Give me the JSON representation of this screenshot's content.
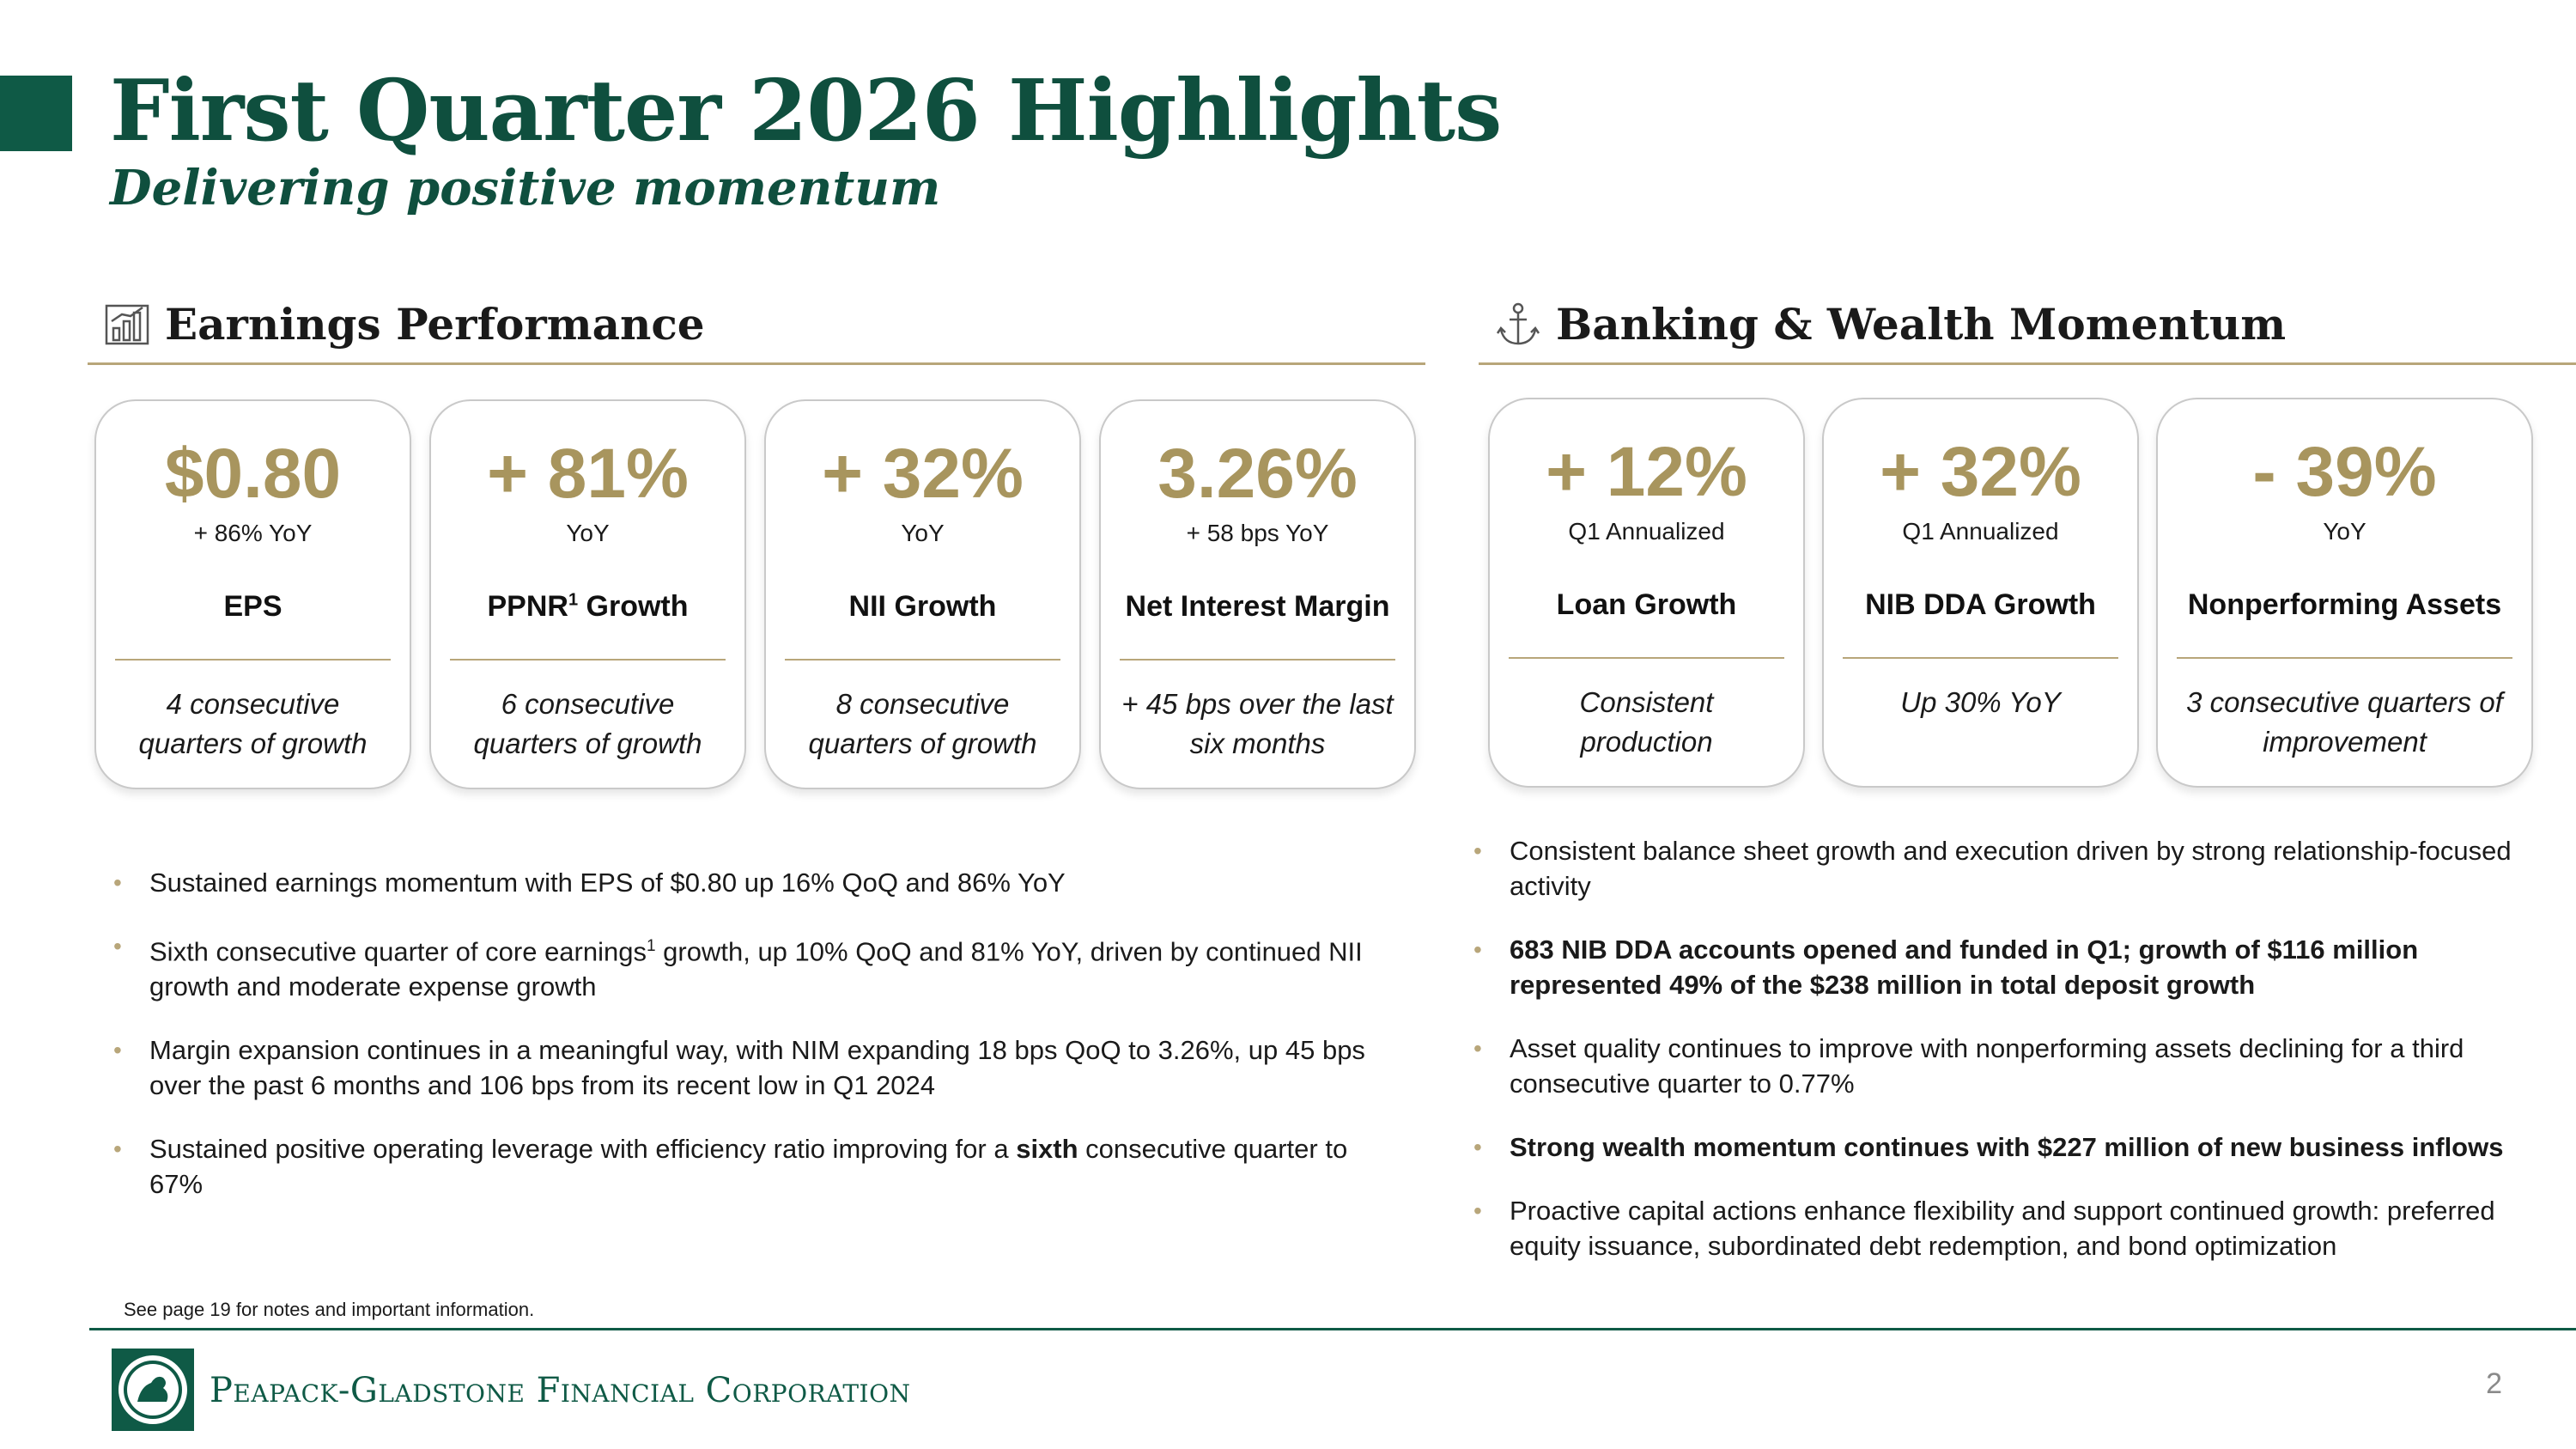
{
  "header": {
    "title": "First Quarter 2026 Highlights",
    "subtitle": "Delivering positive momentum"
  },
  "earnings": {
    "section_title": "Earnings Performance",
    "section_icon": "bar-chart-icon",
    "cards": [
      {
        "value": "$0.80",
        "sub": "+ 86% YoY",
        "label": "EPS",
        "note": "4 consecutive quarters of growth"
      },
      {
        "value": "+ 81%",
        "sub": "YoY",
        "label": "PPNR",
        "label_sup": "1",
        "label_suffix": " Growth",
        "note": "6 consecutive quarters of growth"
      },
      {
        "value": "+ 32%",
        "sub": "YoY",
        "label": "NII Growth",
        "note": "8 consecutive quarters of growth"
      },
      {
        "value": "3.26%",
        "sub": "+ 58 bps YoY",
        "label": "Net Interest Margin",
        "note": "+ 45 bps over the last six months"
      }
    ],
    "bullets": [
      {
        "text": "Sustained earnings momentum with EPS of $0.80 up 16% QoQ and 86% YoY"
      },
      {
        "pre": "Sixth consecutive quarter of core earnings",
        "sup": "1",
        "post": " growth, up 10% QoQ and 81% YoY, driven by continued NII growth and moderate expense growth"
      },
      {
        "text": "Margin expansion continues in a meaningful way, with NIM expanding 18 bps QoQ to 3.26%, up 45 bps over the past 6 months and 106 bps from its recent low in Q1 2024"
      },
      {
        "pre": "Sustained positive operating leverage with efficiency ratio improving for a ",
        "bold": "sixth",
        "post": " consecutive quarter to 67%"
      }
    ]
  },
  "banking": {
    "section_title": "Banking & Wealth Momentum",
    "section_icon": "anchor-icon",
    "cards": [
      {
        "value": "+ 12%",
        "sub": "Q1 Annualized",
        "label": "Loan Growth",
        "note": "Consistent production"
      },
      {
        "value": "+ 32%",
        "sub": "Q1 Annualized",
        "label": "NIB DDA Growth",
        "note": "Up 30% YoY"
      },
      {
        "value": "- 39%",
        "sub": "YoY",
        "label": "Nonperforming Assets",
        "note": "3 consecutive quarters of improvement"
      }
    ],
    "bullets": [
      {
        "text": "Consistent balance sheet growth and execution driven by strong relationship-focused activity",
        "bold_all": false
      },
      {
        "text": "683 NIB DDA accounts opened and funded in Q1; growth of $116 million represented 49% of the $238 million in total deposit growth",
        "bold_all": true
      },
      {
        "text": "Asset quality continues to improve with nonperforming assets declining for a third consecutive quarter to 0.77%",
        "bold_all": false
      },
      {
        "text": "Strong wealth momentum continues with $227 million of new business inflows",
        "bold_all": true
      },
      {
        "text": "Proactive capital actions enhance flexibility and support continued growth: preferred equity issuance, subordinated debt redemption, and bond optimization",
        "bold_all": false
      }
    ]
  },
  "footer": {
    "footnote": "See page 19 for notes and important information.",
    "company": "Peapack-Gladstone Financial Corporation",
    "page_number": "2"
  },
  "colors": {
    "brand_green": "#0f5a46",
    "gold": "#a8955e",
    "rule_gold": "#b8a67a"
  }
}
